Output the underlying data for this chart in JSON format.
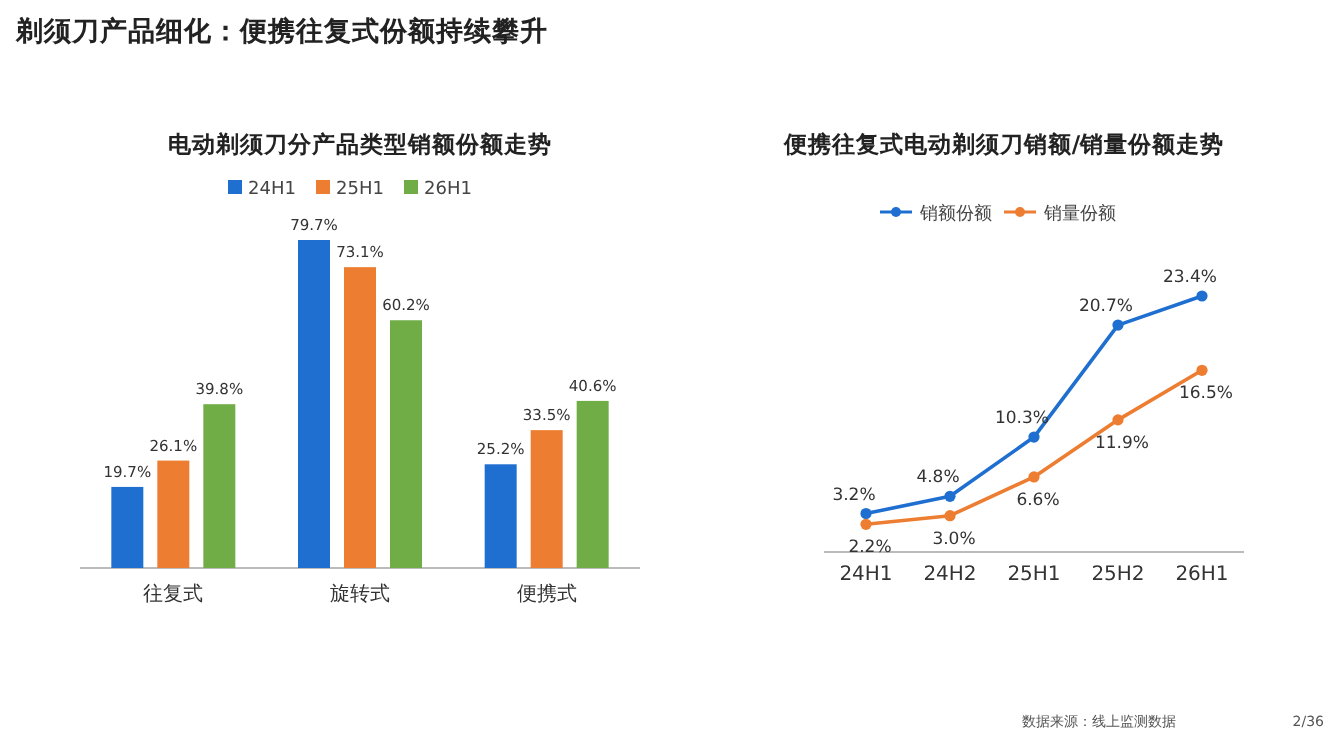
{
  "chart_data": [
    {
      "type": "bar",
      "title": "电动剃须刀分产品类型销额份额走势",
      "categories": [
        "往复式",
        "旋转式",
        "便携式"
      ],
      "series": [
        {
          "name": "24H1",
          "color": "#1f6fd1",
          "values": [
            19.7,
            79.7,
            25.2
          ],
          "value_labels": [
            "19.7%",
            "79.7%",
            "25.2%"
          ]
        },
        {
          "name": "25H1",
          "color": "#ed7d31",
          "values": [
            26.1,
            73.1,
            33.5
          ],
          "value_labels": [
            "26.1%",
            "73.1%",
            "33.5%"
          ]
        },
        {
          "name": "26H1",
          "color": "#70ad47",
          "values": [
            39.8,
            60.2,
            40.6
          ],
          "value_labels": [
            "39.8%",
            "60.2%",
            "40.6%"
          ]
        }
      ],
      "legend": "top",
      "annotations": [
        "剃须刀产品细化：便携往复式份额持续攀升"
      ]
    },
    {
      "type": "line",
      "title": "便携往复式电动剃须刀销额/销量份额走势",
      "categories": [
        "24H1",
        "24H2",
        "25H1",
        "25H2",
        "26H1"
      ],
      "series": [
        {
          "name": "销额份额",
          "color": "#1f6fd1",
          "values": [
            3.2,
            4.8,
            10.3,
            20.7,
            23.4
          ],
          "value_labels": [
            "3.2%",
            "4.8%",
            "10.3%",
            "20.7%",
            "23.4%"
          ]
        },
        {
          "name": "销量份额",
          "color": "#ed7d31",
          "values": [
            2.2,
            3.0,
            6.6,
            11.9,
            16.5
          ],
          "value_labels": [
            "2.2%",
            "3.0%",
            "6.6%",
            "11.9%",
            "16.5%"
          ]
        }
      ],
      "marker": "circle",
      "legend": "top",
      "annotations": [
        "数据来源：线上监测数据",
        "2/36"
      ]
    }
  ]
}
